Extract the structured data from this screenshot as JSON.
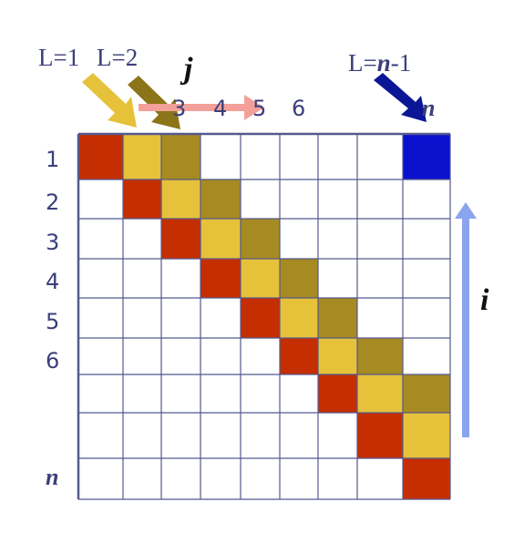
{
  "labels": {
    "len1": "L=1",
    "len2": "L=2",
    "lenLast_prefix": "L=",
    "lenLast_n": "n",
    "lenLast_suffix": "-1",
    "col_var": "j",
    "row_var": "i",
    "n": "n"
  },
  "col_headers": [
    "3",
    "4",
    "5",
    "6"
  ],
  "row_headers": [
    "1",
    "2",
    "3",
    "4",
    "5",
    "6"
  ],
  "colors": {
    "diag_main": "#c42e00",
    "diag_len1": "#e6c23a",
    "diag_len2": "#a68a22",
    "corner": "#0a10cc",
    "grid": "#55598e",
    "arrow_len1": "#e6c23a",
    "arrow_len2": "#8c7418",
    "arrow_last": "#0b1696",
    "arrow_j": "#f4a09a",
    "arrow_i": "#8aa4ee"
  }
}
